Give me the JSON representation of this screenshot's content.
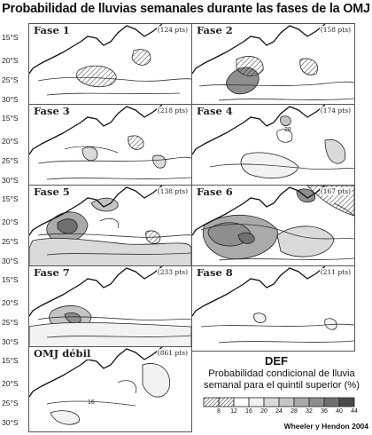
{
  "title": "Probabilidad de lluvias semanales durante las fases de la OMJ",
  "lat_labels": [
    "15°S",
    "20°S",
    "25°S",
    "30°S"
  ],
  "panels": [
    {
      "name": "Fase 1",
      "pts": "(124 pts)",
      "contour_label": ""
    },
    {
      "name": "Fase 2",
      "pts": "(158 pts)",
      "contour_label": ""
    },
    {
      "name": "Fase 3",
      "pts": "(218 pts)",
      "contour_label": ""
    },
    {
      "name": "Fase 4",
      "pts": "(174 pts)",
      "contour_label": "28"
    },
    {
      "name": "Fase 5",
      "pts": "(138 pts)",
      "contour_label": ""
    },
    {
      "name": "Fase 6",
      "pts": "(167 pts)",
      "contour_label": ""
    },
    {
      "name": "Fase 7",
      "pts": "(233 pts)",
      "contour_label": ""
    },
    {
      "name": "Fase 8",
      "pts": "(211 pts)",
      "contour_label": ""
    },
    {
      "name": "OMJ débil",
      "pts": "(861 pts)",
      "contour_label": "16"
    }
  ],
  "legend": {
    "title": "DEF",
    "description": "Probabilidad condicional de lluvia semanal para el quintil superior (%)",
    "ticks": [
      "8",
      "12",
      "16",
      "20",
      "24",
      "28",
      "32",
      "36",
      "40",
      "44"
    ],
    "fill_colors": [
      "#ffffff",
      "#ffffff",
      "#ffffff",
      "#f2f2f2",
      "#dadada",
      "#c4c4c4",
      "#aaaaaa",
      "#8e8e8e",
      "#707070",
      "#4a4a4a"
    ],
    "hatched_bins": [
      0,
      1
    ]
  },
  "credit": "Wheeler y Hendon 2004"
}
